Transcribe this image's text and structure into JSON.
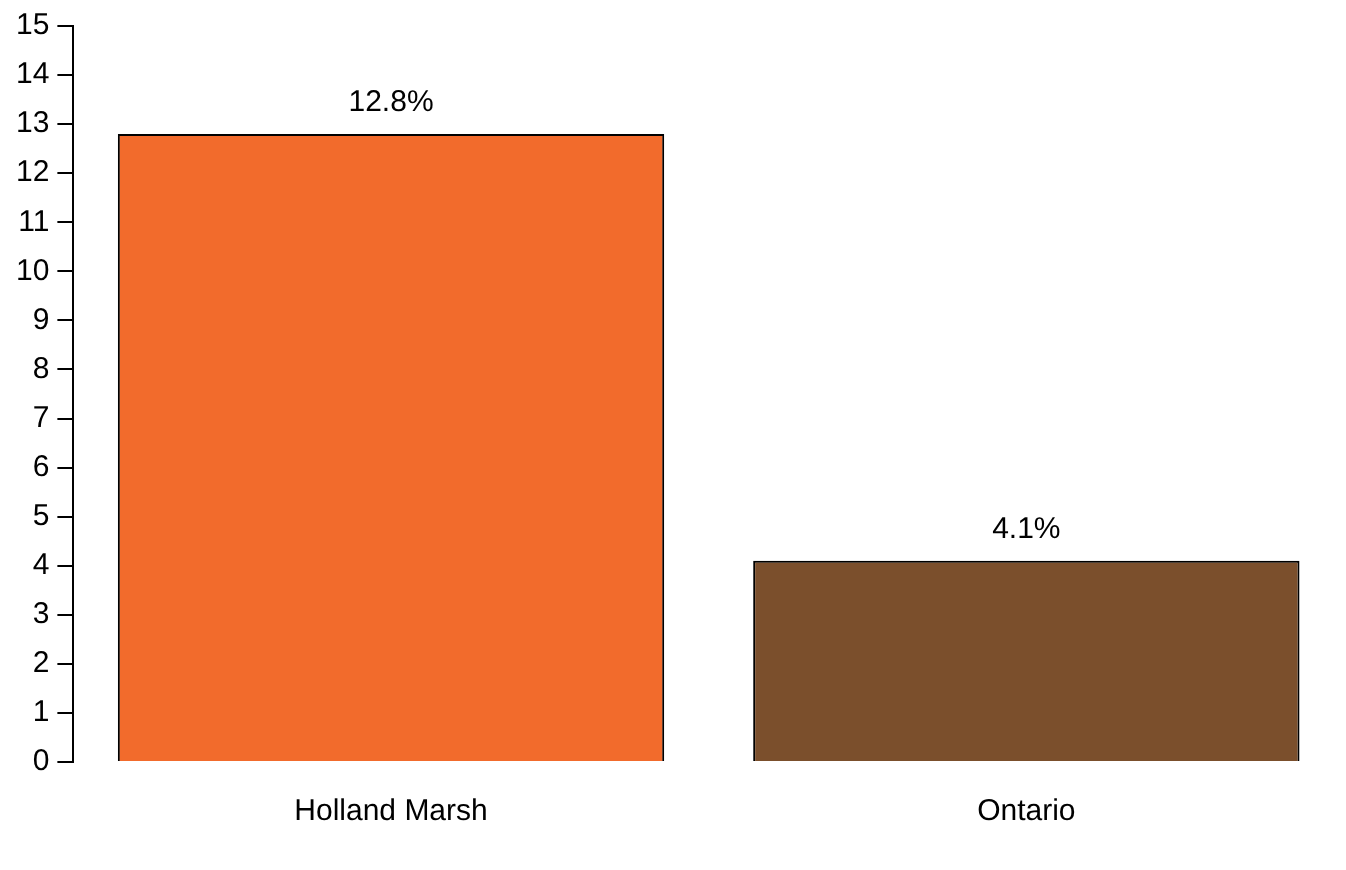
{
  "chart_data": {
    "type": "bar",
    "categories": [
      "Holland Marsh",
      "Ontario"
    ],
    "values": [
      12.8,
      4.1
    ],
    "colors": [
      "#f26b2c",
      "#7b4f2c"
    ],
    "value_labels": [
      "12.8%",
      "4.1%"
    ],
    "ylim": [
      0,
      15
    ],
    "yticks": [
      0,
      1,
      2,
      3,
      4,
      5,
      6,
      7,
      8,
      9,
      10,
      11,
      12,
      13,
      14,
      15
    ],
    "grid": false,
    "legend": false
  }
}
